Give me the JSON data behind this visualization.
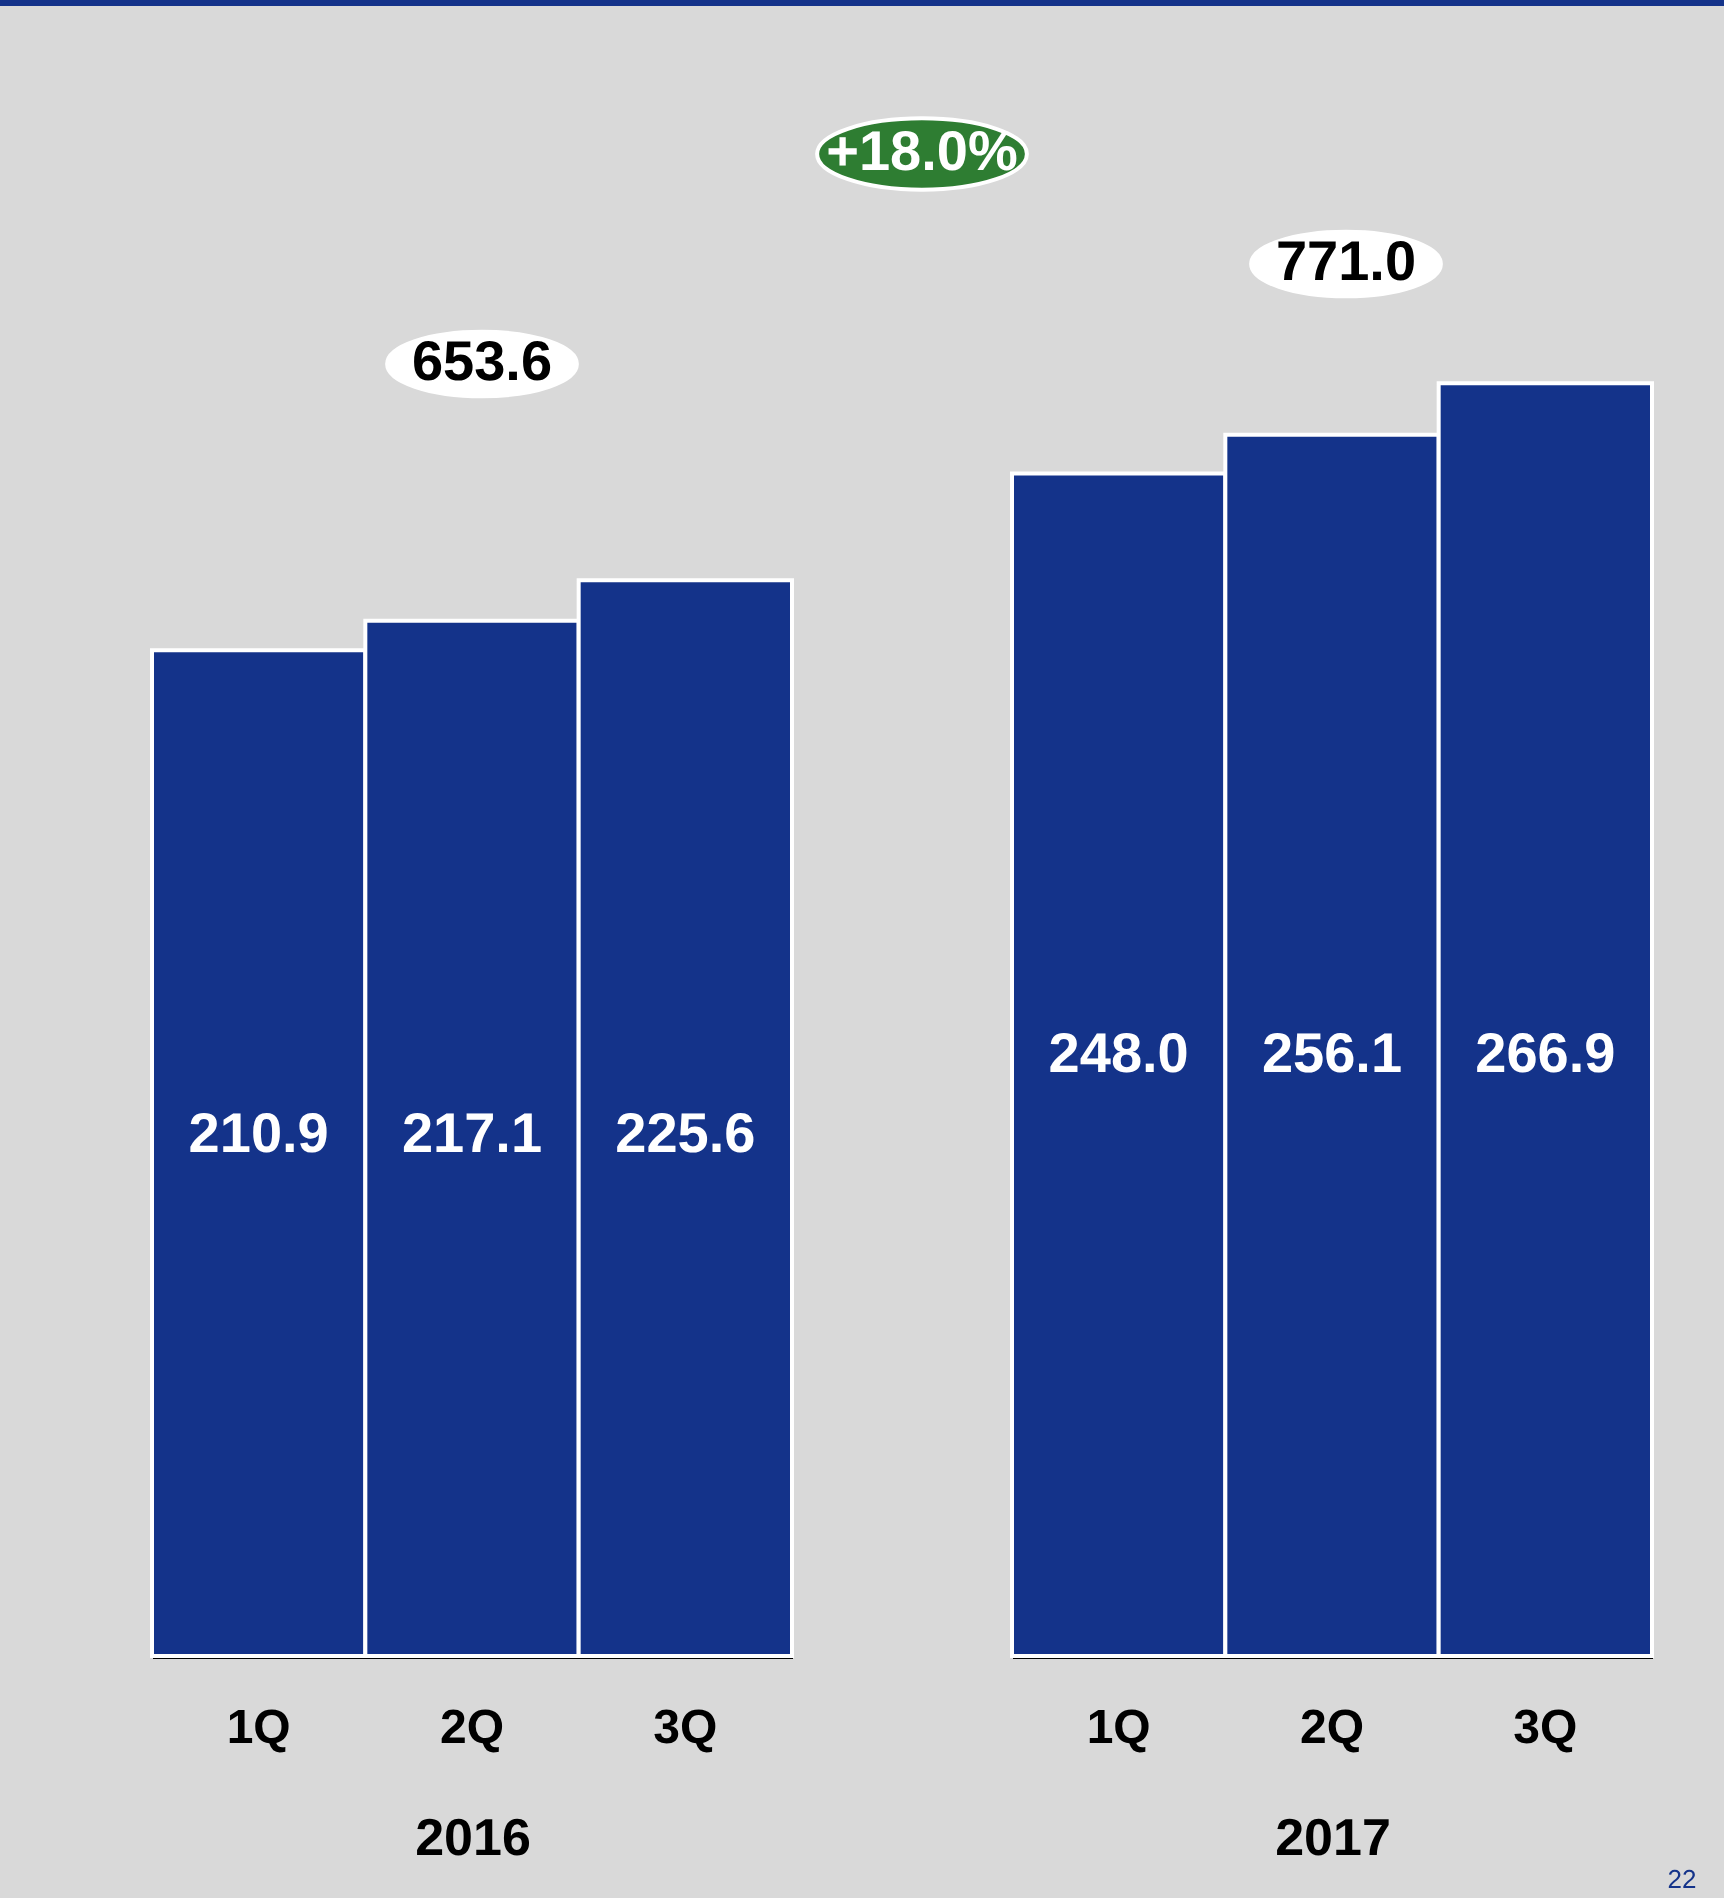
{
  "chart_data": [
    {
      "type": "bar",
      "categories": [
        "1Q",
        "2Q",
        "3Q"
      ],
      "values": [
        210.9,
        217.1,
        225.6
      ],
      "value_labels": [
        "210.9",
        "217.1",
        "225.6"
      ],
      "color": "#14338a",
      "xlabel": "2016",
      "annotations": [
        "653.6",
        "+18.0%"
      ]
    },
    {
      "type": "bar",
      "categories": [
        "1Q",
        "2Q",
        "3Q"
      ],
      "values": [
        248.0,
        256.1,
        266.9
      ],
      "value_labels": [
        "248.0",
        "256.1",
        "266.9"
      ],
      "color": "#14338a",
      "xlabel": "2017",
      "annotations": [
        "771.0",
        "22"
      ]
    }
  ]
}
